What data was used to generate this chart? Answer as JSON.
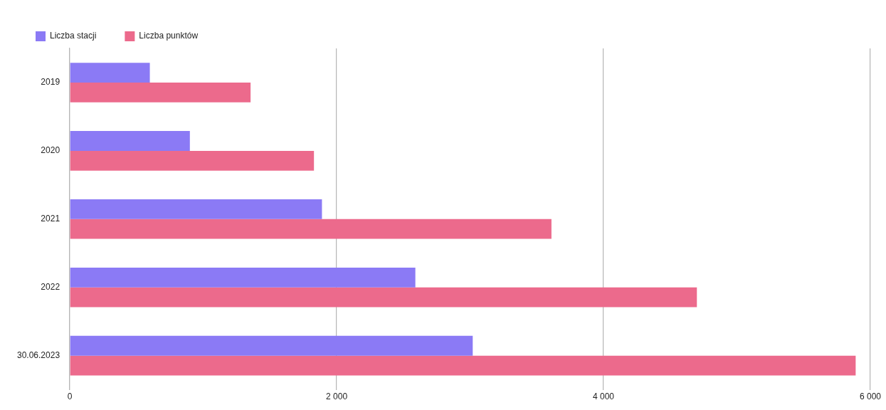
{
  "chart_data": {
    "type": "bar",
    "orientation": "horizontal",
    "categories": [
      "2019",
      "2020",
      "2021",
      "2022",
      "30.06.2023"
    ],
    "series": [
      {
        "name": "Liczba stacji",
        "color": "#8b7af5",
        "values": [
          600,
          900,
          1890,
          2590,
          3020
        ]
      },
      {
        "name": "Liczba punktów",
        "color": "#ec6a8c",
        "values": [
          1355,
          1830,
          3610,
          4700,
          5890
        ]
      }
    ],
    "xlim": [
      0,
      6000
    ],
    "xticks": [
      0,
      {
        "value": 2000,
        "label": "2 000"
      },
      {
        "value": 4000,
        "label": "4 000"
      },
      {
        "value": 6000,
        "label": "6 000"
      }
    ],
    "grid": "x",
    "legend": "top left"
  }
}
